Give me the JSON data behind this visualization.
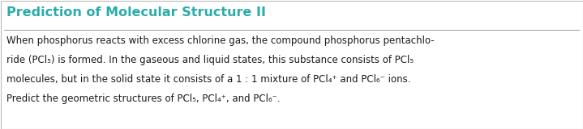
{
  "title": "Prediction of Molecular Structure II",
  "title_color": "#2AACAA",
  "title_fontsize": 11.5,
  "body_fontsize": 8.5,
  "background_color": "#FFFFFF",
  "border_color": "#BBBBBB",
  "title_separator_color": "#999999",
  "line1": "When phosphorus reacts with excess chlorine gas, the compound phosphorus pentachlo-",
  "line2": "ride (PCl₅) is formed. In the gaseous and liquid states, this substance consists of PCl₅",
  "line3": "molecules, but in the solid state it consists of a 1 : 1 mixture of PCl₄⁺ and PCl₆⁻ ions.",
  "line4": "Predict the geometric structures of PCl₅, PCl₄⁺, and PCl₆⁻.",
  "fig_width": 7.19,
  "fig_height": 1.6,
  "dpi": 100
}
